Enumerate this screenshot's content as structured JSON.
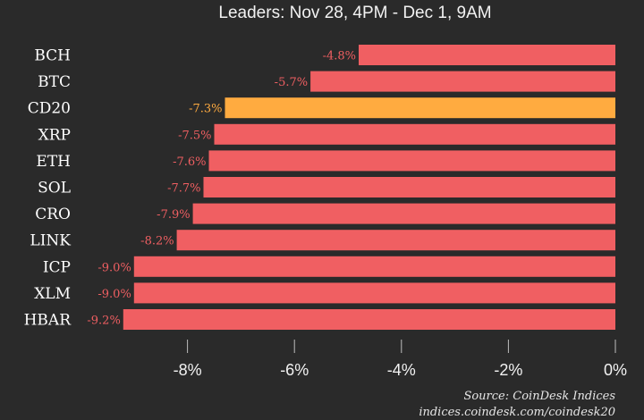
{
  "chart_data": {
    "type": "bar",
    "orientation": "horizontal",
    "title": "(...)",
    "subtitle": "Leaders: Nov 28, 4PM - Dec 1, 9AM",
    "categories": [
      "BCH",
      "BTC",
      "CD20",
      "XRP",
      "ETH",
      "SOL",
      "CRO",
      "LINK",
      "ICP",
      "XLM",
      "HBAR"
    ],
    "values": [
      -4.8,
      -5.7,
      -7.3,
      -7.5,
      -7.6,
      -7.7,
      -7.9,
      -8.2,
      -9.0,
      -9.0,
      -9.2
    ],
    "value_labels": [
      "-4.8%",
      "-5.7%",
      "-7.3%",
      "-7.5%",
      "-7.6%",
      "-7.7%",
      "-7.9%",
      "-8.2%",
      "-9.0%",
      "-9.0%",
      "-9.2%"
    ],
    "highlight_category": "CD20",
    "colors": {
      "bar": "#f05f62",
      "highlight": "#ffab40",
      "label": "#f05f62",
      "highlight_label": "#ffab40"
    },
    "xlim": [
      -10,
      0
    ],
    "x_ticks": [
      -8,
      -6,
      -4,
      -2,
      0
    ],
    "x_tick_labels": [
      "-8%",
      "-6%",
      "-4%",
      "-2%",
      "0%"
    ],
    "grid": false,
    "xlabel": "",
    "ylabel": ""
  },
  "footer": {
    "source": "Source: CoinDesk Indices",
    "url": "indices.coindesk.com/coindesk20"
  }
}
